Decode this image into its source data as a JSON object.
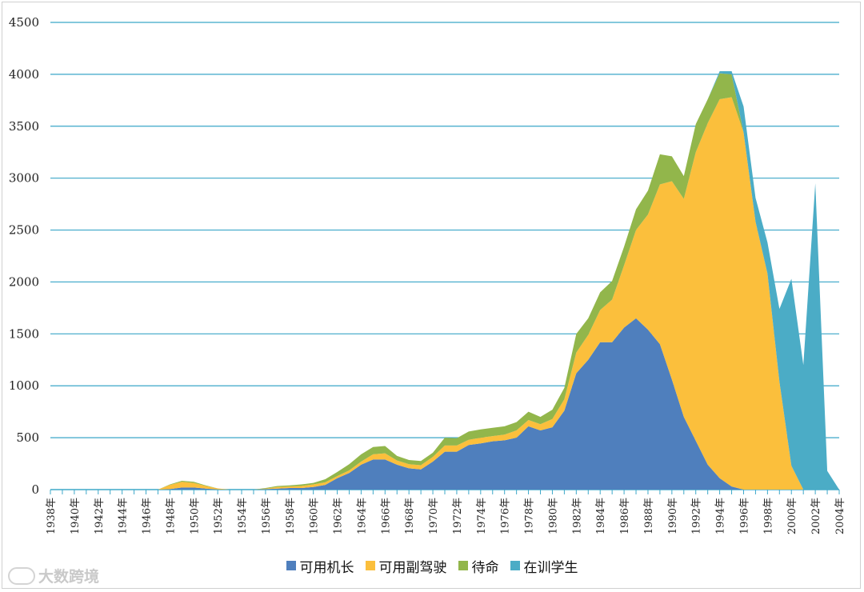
{
  "chart_data": {
    "type": "area",
    "stacked": true,
    "title": "",
    "xlabel": "",
    "ylabel": "",
    "ylim": [
      0,
      4500
    ],
    "yticks": [
      0,
      500,
      1000,
      1500,
      2000,
      2500,
      3000,
      3500,
      4000,
      4500
    ],
    "grid": "horizontal",
    "legend_position": "bottom",
    "x": [
      1938,
      1939,
      1940,
      1941,
      1942,
      1943,
      1944,
      1945,
      1946,
      1947,
      1948,
      1949,
      1950,
      1951,
      1952,
      1953,
      1954,
      1955,
      1956,
      1957,
      1958,
      1959,
      1960,
      1961,
      1962,
      1963,
      1964,
      1965,
      1966,
      1967,
      1968,
      1969,
      1970,
      1971,
      1972,
      1973,
      1974,
      1975,
      1976,
      1977,
      1978,
      1979,
      1980,
      1981,
      1982,
      1983,
      1984,
      1985,
      1986,
      1987,
      1988,
      1989,
      1990,
      1991,
      1992,
      1993,
      1994,
      1995,
      1996,
      1997,
      1998,
      1999,
      2000,
      2001,
      2002,
      2003,
      2004
    ],
    "xtick_labels": [
      "1938年",
      "1940年",
      "1942年",
      "1944年",
      "1946年",
      "1948年",
      "1950年",
      "1952年",
      "1954年",
      "1956年",
      "1958年",
      "1960年",
      "1962年",
      "1964年",
      "1966年",
      "1968年",
      "1970年",
      "1972年",
      "1974年",
      "1976年",
      "1978年",
      "1980年",
      "1982年",
      "1984年",
      "1986年",
      "1988年",
      "1990年",
      "1992年",
      "1994年",
      "1996年",
      "1998年",
      "2000年",
      "2002年",
      "2004年"
    ],
    "series": [
      {
        "name": "可用机长",
        "color": "#4f7fbd",
        "values": [
          0,
          0,
          0,
          0,
          0,
          0,
          0,
          0,
          0,
          0,
          5,
          20,
          20,
          10,
          2,
          0,
          0,
          0,
          5,
          10,
          15,
          15,
          25,
          45,
          110,
          160,
          240,
          290,
          290,
          240,
          205,
          195,
          270,
          365,
          365,
          430,
          445,
          465,
          475,
          500,
          610,
          570,
          600,
          760,
          1120,
          1250,
          1420,
          1420,
          1560,
          1650,
          1540,
          1400,
          1060,
          700,
          470,
          240,
          110,
          30,
          0,
          0,
          0,
          0,
          0,
          0,
          0,
          0,
          0
        ]
      },
      {
        "name": "可用副驾驶",
        "color": "#fbbf3c",
        "values": [
          0,
          0,
          0,
          0,
          0,
          0,
          0,
          0,
          0,
          0,
          40,
          55,
          45,
          25,
          10,
          0,
          0,
          0,
          5,
          15,
          15,
          20,
          25,
          25,
          20,
          25,
          30,
          50,
          60,
          40,
          40,
          40,
          45,
          60,
          60,
          50,
          55,
          50,
          55,
          70,
          60,
          60,
          80,
          110,
          200,
          240,
          310,
          410,
          600,
          850,
          1110,
          1540,
          1910,
          2100,
          2780,
          3290,
          3650,
          3750,
          3440,
          2580,
          2080,
          1040,
          230,
          0,
          0,
          0,
          0
        ]
      },
      {
        "name": "待命",
        "color": "#92b64b",
        "values": [
          0,
          0,
          0,
          0,
          0,
          0,
          0,
          0,
          0,
          0,
          5,
          10,
          10,
          5,
          0,
          0,
          0,
          0,
          5,
          10,
          10,
          15,
          15,
          30,
          40,
          60,
          70,
          70,
          70,
          45,
          40,
          40,
          40,
          75,
          70,
          80,
          80,
          80,
          80,
          80,
          80,
          70,
          90,
          110,
          180,
          160,
          170,
          180,
          180,
          200,
          230,
          290,
          240,
          220,
          270,
          230,
          250,
          220,
          0,
          0,
          0,
          0,
          0,
          0,
          0,
          0,
          0
        ]
      },
      {
        "name": "在训学生",
        "color": "#4bacc6",
        "values": [
          0,
          0,
          0,
          0,
          0,
          0,
          0,
          0,
          0,
          0,
          0,
          0,
          0,
          0,
          0,
          0,
          0,
          0,
          0,
          0,
          0,
          0,
          0,
          0,
          0,
          0,
          0,
          0,
          0,
          0,
          0,
          0,
          0,
          0,
          0,
          0,
          0,
          0,
          0,
          0,
          0,
          0,
          0,
          0,
          0,
          0,
          0,
          0,
          0,
          0,
          0,
          0,
          0,
          0,
          0,
          0,
          20,
          30,
          250,
          230,
          300,
          700,
          1800,
          1200,
          2950,
          180,
          0
        ]
      }
    ]
  },
  "watermark": {
    "text": "大数跨境"
  }
}
